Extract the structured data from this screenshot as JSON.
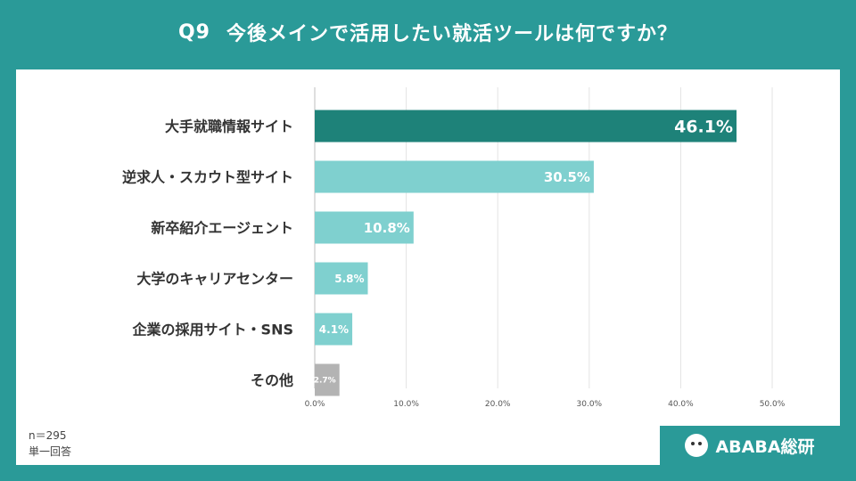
{
  "header": {
    "question_no": "Q9",
    "title": "今後メインで活用したい就活ツールは何ですか？"
  },
  "footer": {
    "sample": "n＝295",
    "answer_type": "単一回答",
    "brand": "ABABA総研"
  },
  "colors": {
    "background": "#2a9a98",
    "top_bar": "#1e8279",
    "bar": "#7fd0cf",
    "other_bar": "#b3b3b3",
    "grid": "#e3e3e3"
  },
  "chart_data": {
    "type": "bar",
    "orientation": "horizontal",
    "categories": [
      "大手就職情報サイト",
      "逆求人・スカウト型サイト",
      "新卒紹介エージェント",
      "大学のキャリアセンター",
      "企業の採用サイト・SNS",
      "その他"
    ],
    "values": [
      46.1,
      30.5,
      10.8,
      5.8,
      4.1,
      2.7
    ],
    "value_labels": [
      "46.1%",
      "30.5%",
      "10.8%",
      "5.8%",
      "4.1%",
      "2.7%"
    ],
    "xlim": [
      0,
      50
    ],
    "xticks": [
      "0.0%",
      "10.0%",
      "20.0%",
      "30.0%",
      "40.0%",
      "50.0%"
    ],
    "grid": true,
    "title": "",
    "xlabel": "",
    "ylabel": ""
  }
}
